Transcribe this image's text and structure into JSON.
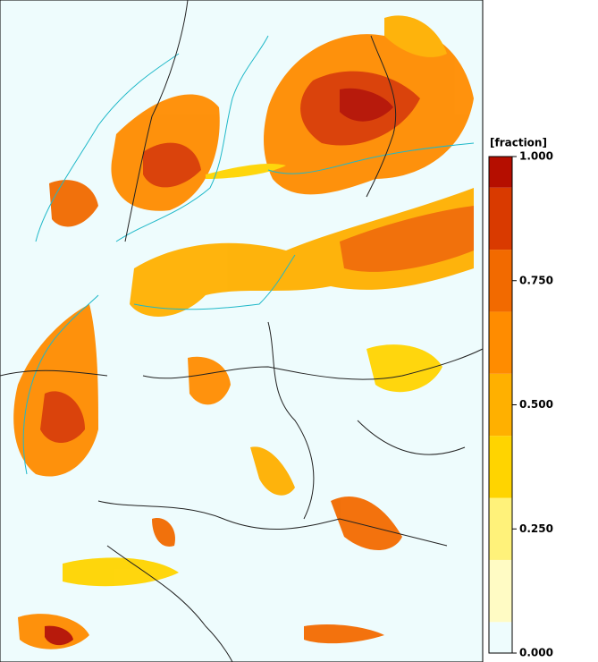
{
  "colorbar": {
    "label": "[fraction]",
    "levels": [
      0,
      0.0625,
      0.1875,
      0.3125,
      0.4375,
      0.5625,
      0.6875,
      0.8125,
      0.9375,
      1
    ],
    "colors": [
      "#eefcfd",
      "#fffbc4",
      "#fff27a",
      "#ffd400",
      "#ffb000",
      "#ff8c00",
      "#f26a00",
      "#d93a00",
      "#b50e00"
    ],
    "ticks": [
      {
        "value": 0,
        "label": "0.000"
      },
      {
        "value": 0.25,
        "label": "0.250"
      },
      {
        "value": 0.5,
        "label": "0.500"
      },
      {
        "value": 0.75,
        "label": "0.750"
      },
      {
        "value": 1,
        "label": "1.000"
      }
    ]
  }
}
